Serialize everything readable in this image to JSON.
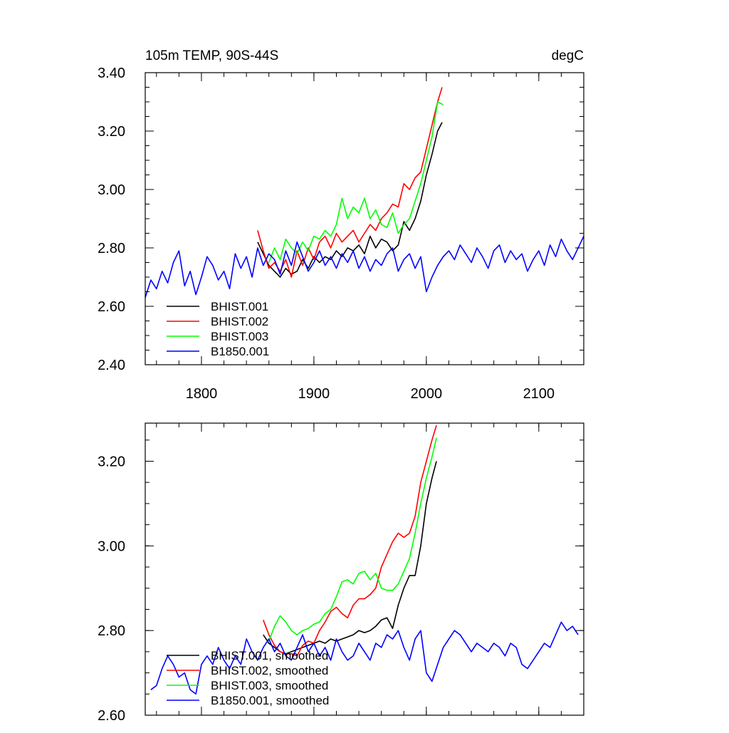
{
  "chart_data": [
    {
      "type": "line",
      "title": "105m TEMP, 90S-44S",
      "units": "degC",
      "xlim": [
        1750,
        2140
      ],
      "ylim": [
        2.4,
        3.4
      ],
      "xticks": [
        1800,
        1900,
        2000,
        2100
      ],
      "xtick_labels": [
        "1800",
        "1900",
        "2000",
        "2100"
      ],
      "yticks": [
        2.4,
        2.6,
        2.8,
        3.0,
        3.2,
        3.4
      ],
      "ytick_labels": [
        "2.40",
        "2.60",
        "2.80",
        "3.00",
        "3.20",
        "3.40"
      ],
      "legend_position": "bottom-left",
      "series": [
        {
          "name": "BHIST.001",
          "color": "#000000",
          "x": [
            1850,
            1855,
            1860,
            1865,
            1870,
            1875,
            1880,
            1885,
            1890,
            1895,
            1900,
            1905,
            1910,
            1915,
            1920,
            1925,
            1930,
            1935,
            1940,
            1945,
            1950,
            1955,
            1960,
            1965,
            1970,
            1975,
            1980,
            1985,
            1990,
            1995,
            2000,
            2005,
            2010,
            2014
          ],
          "y": [
            2.82,
            2.78,
            2.74,
            2.72,
            2.7,
            2.73,
            2.71,
            2.72,
            2.76,
            2.73,
            2.77,
            2.75,
            2.77,
            2.76,
            2.79,
            2.77,
            2.8,
            2.79,
            2.81,
            2.78,
            2.84,
            2.8,
            2.83,
            2.82,
            2.79,
            2.81,
            2.89,
            2.86,
            2.9,
            2.96,
            3.05,
            3.12,
            3.2,
            3.23
          ]
        },
        {
          "name": "BHIST.002",
          "color": "#ff0000",
          "x": [
            1850,
            1855,
            1860,
            1865,
            1870,
            1875,
            1880,
            1885,
            1890,
            1895,
            1900,
            1905,
            1910,
            1915,
            1920,
            1925,
            1930,
            1935,
            1940,
            1945,
            1950,
            1955,
            1960,
            1965,
            1970,
            1975,
            1980,
            1985,
            1990,
            1995,
            2000,
            2005,
            2010,
            2014
          ],
          "y": [
            2.86,
            2.79,
            2.73,
            2.75,
            2.72,
            2.76,
            2.7,
            2.79,
            2.74,
            2.8,
            2.76,
            2.82,
            2.84,
            2.8,
            2.85,
            2.82,
            2.84,
            2.86,
            2.82,
            2.85,
            2.88,
            2.86,
            2.9,
            2.92,
            2.95,
            2.94,
            3.02,
            3.0,
            3.04,
            3.06,
            3.14,
            3.22,
            3.3,
            3.35
          ]
        },
        {
          "name": "BHIST.003",
          "color": "#00ff00",
          "x": [
            1860,
            1865,
            1870,
            1875,
            1880,
            1885,
            1890,
            1895,
            1900,
            1905,
            1910,
            1915,
            1920,
            1925,
            1930,
            1935,
            1940,
            1945,
            1950,
            1955,
            1960,
            1965,
            1970,
            1975,
            1980,
            1985,
            1990,
            1995,
            2000,
            2005,
            2010,
            2015
          ],
          "y": [
            2.75,
            2.8,
            2.76,
            2.83,
            2.8,
            2.78,
            2.82,
            2.79,
            2.84,
            2.83,
            2.86,
            2.84,
            2.88,
            2.97,
            2.9,
            2.94,
            2.92,
            2.97,
            2.9,
            2.93,
            2.88,
            2.87,
            2.92,
            2.85,
            2.88,
            2.9,
            2.96,
            3.02,
            3.1,
            3.18,
            3.3,
            3.29
          ]
        },
        {
          "name": "B1850.001",
          "color": "#0000ff",
          "x": [
            1750,
            1755,
            1760,
            1765,
            1770,
            1775,
            1780,
            1785,
            1790,
            1795,
            1800,
            1805,
            1810,
            1815,
            1820,
            1825,
            1830,
            1835,
            1840,
            1845,
            1850,
            1855,
            1860,
            1865,
            1870,
            1875,
            1880,
            1885,
            1890,
            1895,
            1900,
            1905,
            1910,
            1915,
            1920,
            1925,
            1930,
            1935,
            1940,
            1945,
            1950,
            1955,
            1960,
            1965,
            1970,
            1975,
            1980,
            1985,
            1990,
            1995,
            2000,
            2005,
            2010,
            2015,
            2020,
            2025,
            2030,
            2035,
            2040,
            2045,
            2050,
            2055,
            2060,
            2065,
            2070,
            2075,
            2080,
            2085,
            2090,
            2095,
            2100,
            2105,
            2110,
            2115,
            2120,
            2125,
            2130,
            2135,
            2140
          ],
          "y": [
            2.63,
            2.69,
            2.66,
            2.72,
            2.68,
            2.75,
            2.79,
            2.67,
            2.72,
            2.64,
            2.7,
            2.77,
            2.74,
            2.69,
            2.72,
            2.66,
            2.78,
            2.73,
            2.77,
            2.7,
            2.8,
            2.74,
            2.78,
            2.76,
            2.71,
            2.79,
            2.74,
            2.82,
            2.77,
            2.72,
            2.75,
            2.79,
            2.74,
            2.77,
            2.73,
            2.78,
            2.75,
            2.79,
            2.73,
            2.77,
            2.72,
            2.76,
            2.74,
            2.78,
            2.8,
            2.72,
            2.76,
            2.78,
            2.73,
            2.77,
            2.65,
            2.7,
            2.74,
            2.77,
            2.79,
            2.76,
            2.81,
            2.78,
            2.75,
            2.8,
            2.77,
            2.73,
            2.79,
            2.81,
            2.75,
            2.79,
            2.76,
            2.78,
            2.72,
            2.76,
            2.79,
            2.74,
            2.81,
            2.77,
            2.83,
            2.79,
            2.76,
            2.8,
            2.84
          ]
        }
      ]
    },
    {
      "type": "line",
      "xlim": [
        1750,
        2140
      ],
      "ylim": [
        2.6,
        3.29
      ],
      "xticks": [
        1800,
        1900,
        2000,
        2100
      ],
      "yticks": [
        2.6,
        2.8,
        3.0,
        3.2
      ],
      "ytick_labels": [
        "2.60",
        "2.80",
        "3.00",
        "3.20"
      ],
      "legend_position": "bottom-left",
      "series": [
        {
          "name": "BHIST.001, smoothed",
          "color": "#000000",
          "x": [
            1855,
            1860,
            1865,
            1870,
            1875,
            1880,
            1885,
            1890,
            1895,
            1900,
            1905,
            1910,
            1915,
            1920,
            1925,
            1930,
            1935,
            1940,
            1945,
            1950,
            1955,
            1960,
            1965,
            1970,
            1975,
            1980,
            1985,
            1990,
            1995,
            2000,
            2005,
            2009
          ],
          "y": [
            2.79,
            2.77,
            2.76,
            2.75,
            2.745,
            2.75,
            2.755,
            2.76,
            2.765,
            2.77,
            2.775,
            2.77,
            2.78,
            2.775,
            2.78,
            2.785,
            2.79,
            2.8,
            2.795,
            2.8,
            2.81,
            2.825,
            2.83,
            2.805,
            2.86,
            2.9,
            2.93,
            2.93,
            3.0,
            3.1,
            3.16,
            3.2
          ]
        },
        {
          "name": "BHIST.002, smoothed",
          "color": "#ff0000",
          "x": [
            1855,
            1860,
            1865,
            1870,
            1875,
            1880,
            1885,
            1890,
            1895,
            1900,
            1905,
            1910,
            1915,
            1920,
            1925,
            1930,
            1935,
            1940,
            1945,
            1950,
            1955,
            1960,
            1965,
            1970,
            1975,
            1980,
            1985,
            1990,
            1995,
            2000,
            2005,
            2009
          ],
          "y": [
            2.825,
            2.79,
            2.765,
            2.75,
            2.745,
            2.745,
            2.74,
            2.765,
            2.775,
            2.77,
            2.8,
            2.82,
            2.845,
            2.855,
            2.84,
            2.83,
            2.86,
            2.875,
            2.875,
            2.885,
            2.9,
            2.95,
            2.98,
            3.01,
            3.03,
            3.02,
            3.03,
            3.07,
            3.15,
            3.2,
            3.25,
            3.285
          ]
        },
        {
          "name": "BHIST.003, smoothed",
          "color": "#00ff00",
          "x": [
            1860,
            1865,
            1870,
            1875,
            1880,
            1885,
            1890,
            1895,
            1900,
            1905,
            1910,
            1915,
            1920,
            1925,
            1930,
            1935,
            1940,
            1945,
            1950,
            1955,
            1960,
            1965,
            1970,
            1975,
            1980,
            1985,
            1990,
            1995,
            2000,
            2005,
            2009
          ],
          "y": [
            2.775,
            2.81,
            2.835,
            2.82,
            2.8,
            2.79,
            2.8,
            2.805,
            2.815,
            2.82,
            2.84,
            2.85,
            2.88,
            2.915,
            2.92,
            2.91,
            2.935,
            2.94,
            2.92,
            2.935,
            2.9,
            2.895,
            2.895,
            2.91,
            2.94,
            2.97,
            3.03,
            3.1,
            3.16,
            3.21,
            3.255
          ]
        },
        {
          "name": "B1850.001, smoothed",
          "color": "#0000ff",
          "x": [
            1755,
            1760,
            1765,
            1770,
            1775,
            1780,
            1785,
            1790,
            1795,
            1800,
            1805,
            1810,
            1815,
            1820,
            1825,
            1830,
            1835,
            1840,
            1845,
            1850,
            1855,
            1860,
            1865,
            1870,
            1875,
            1880,
            1885,
            1890,
            1895,
            1900,
            1905,
            1910,
            1915,
            1920,
            1925,
            1930,
            1935,
            1940,
            1945,
            1950,
            1955,
            1960,
            1965,
            1970,
            1975,
            1980,
            1985,
            1990,
            1995,
            2000,
            2005,
            2010,
            2015,
            2020,
            2025,
            2030,
            2035,
            2040,
            2045,
            2050,
            2055,
            2060,
            2065,
            2070,
            2075,
            2080,
            2085,
            2090,
            2095,
            2100,
            2105,
            2110,
            2115,
            2120,
            2125,
            2130,
            2135
          ],
          "y": [
            2.66,
            2.67,
            2.71,
            2.74,
            2.72,
            2.69,
            2.7,
            2.66,
            2.65,
            2.72,
            2.74,
            2.72,
            2.76,
            2.73,
            2.71,
            2.74,
            2.72,
            2.78,
            2.75,
            2.73,
            2.76,
            2.78,
            2.75,
            2.77,
            2.74,
            2.73,
            2.76,
            2.79,
            2.75,
            2.77,
            2.74,
            2.76,
            2.73,
            2.78,
            2.75,
            2.73,
            2.74,
            2.77,
            2.75,
            2.73,
            2.77,
            2.76,
            2.79,
            2.78,
            2.8,
            2.76,
            2.73,
            2.78,
            2.8,
            2.7,
            2.68,
            2.72,
            2.76,
            2.78,
            2.8,
            2.79,
            2.77,
            2.75,
            2.77,
            2.76,
            2.75,
            2.77,
            2.76,
            2.74,
            2.77,
            2.76,
            2.72,
            2.71,
            2.73,
            2.75,
            2.77,
            2.76,
            2.79,
            2.82,
            2.8,
            2.81,
            2.79
          ]
        }
      ]
    }
  ]
}
